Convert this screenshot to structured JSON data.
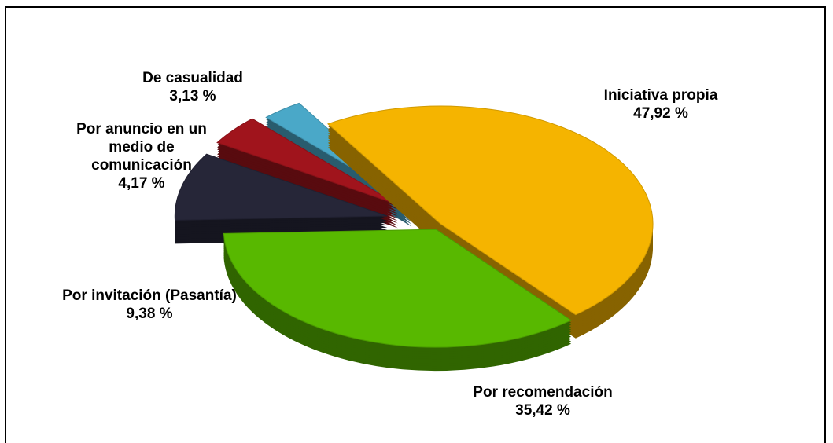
{
  "chart_data": {
    "type": "pie",
    "categories": [
      "Iniciativa propia",
      "Por recomendación",
      "Por invitación (Pasantía)",
      "Por anuncio en un medio de comunicación",
      "De casualidad"
    ],
    "values": [
      47.92,
      35.42,
      9.38,
      4.17,
      3.13
    ],
    "value_labels": [
      "47,92 %",
      "35,42 %",
      "9,38 %",
      "4,17 %",
      "3,13 %"
    ],
    "colors": [
      "#f5b400",
      "#58b800",
      "#262638",
      "#a0141c",
      "#4aa8c8"
    ]
  }
}
